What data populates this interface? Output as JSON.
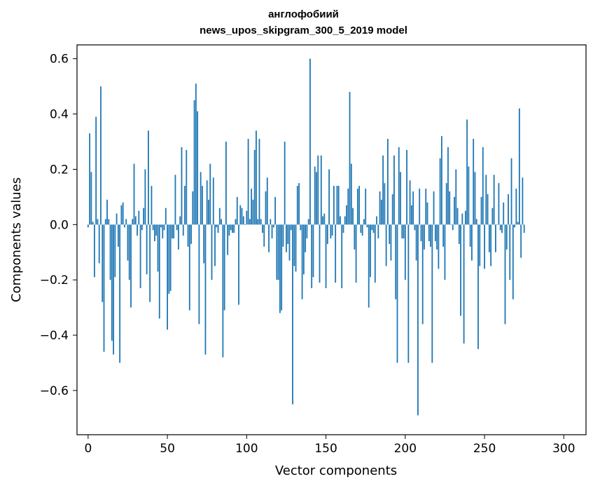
{
  "chart_data": {
    "type": "bar",
    "title_line1": "англофобиий",
    "title_line2": "news_upos_skipgram_300_5_2019 model",
    "xlabel": "Vector components",
    "ylabel": "Components values",
    "xlim": [
      -7,
      314
    ],
    "ylim": [
      -0.76,
      0.65
    ],
    "xticks": [
      0,
      50,
      100,
      150,
      200,
      250,
      300
    ],
    "xtick_labels": [
      "0",
      "50",
      "100",
      "150",
      "200",
      "250",
      "300"
    ],
    "yticks": [
      -0.6,
      -0.4,
      -0.2,
      0.0,
      0.2,
      0.4,
      0.6
    ],
    "ytick_labels": [
      "−0.6",
      "−0.4",
      "−0.2",
      "0.0",
      "0.2",
      "0.4",
      "0.6"
    ],
    "grid": false,
    "bar_color": "#1f77b4",
    "values": [
      -0.01,
      0.33,
      0.19,
      0.01,
      -0.19,
      0.39,
      0.02,
      -0.14,
      0.5,
      -0.28,
      -0.46,
      0.02,
      0.09,
      0.02,
      -0.2,
      -0.42,
      -0.47,
      -0.19,
      0.04,
      -0.08,
      -0.5,
      0.07,
      0.08,
      -0.01,
      0.02,
      -0.13,
      -0.2,
      -0.3,
      0.02,
      0.22,
      0.03,
      -0.04,
      0.05,
      -0.23,
      -0.02,
      0.06,
      0.2,
      -0.18,
      0.34,
      -0.28,
      0.14,
      -0.02,
      -0.06,
      -0.04,
      -0.17,
      -0.34,
      -0.01,
      -0.05,
      -0.02,
      0.06,
      -0.38,
      -0.25,
      -0.24,
      -0.05,
      -0.05,
      0.18,
      -0.02,
      -0.09,
      0.03,
      0.28,
      -0.04,
      0.14,
      0.27,
      -0.08,
      -0.31,
      -0.07,
      0.12,
      0.45,
      0.51,
      0.41,
      -0.36,
      0.19,
      0.14,
      -0.14,
      -0.47,
      0.16,
      0.09,
      0.22,
      -0.2,
      0.17,
      -0.15,
      -0.01,
      -0.03,
      0.06,
      0.02,
      -0.48,
      -0.31,
      0.3,
      -0.11,
      -0.04,
      -0.02,
      -0.03,
      -0.03,
      0.02,
      0.1,
      -0.29,
      0.07,
      0.06,
      0.03,
      0.0,
      0.05,
      0.31,
      0.02,
      0.13,
      0.09,
      0.27,
      0.34,
      0.02,
      0.31,
      0.02,
      -0.03,
      -0.08,
      0.12,
      0.17,
      -0.1,
      0.02,
      -0.05,
      -0.01,
      0.1,
      -0.2,
      -0.2,
      -0.32,
      -0.31,
      -0.08,
      0.3,
      -0.1,
      -0.07,
      -0.13,
      -0.02,
      -0.65,
      -0.15,
      -0.17,
      0.14,
      0.15,
      -0.02,
      -0.27,
      -0.18,
      -0.1,
      -0.05,
      0.02,
      0.6,
      -0.23,
      -0.19,
      0.21,
      0.19,
      0.25,
      -0.21,
      0.25,
      0.03,
      0.04,
      -0.23,
      -0.07,
      0.2,
      -0.05,
      -0.04,
      0.14,
      -0.21,
      0.14,
      0.14,
      0.03,
      -0.23,
      -0.03,
      0.03,
      0.07,
      0.13,
      0.48,
      0.22,
      0.06,
      -0.09,
      -0.21,
      0.13,
      0.14,
      -0.03,
      -0.04,
      0.02,
      0.13,
      -0.01,
      -0.3,
      -0.19,
      -0.02,
      -0.03,
      -0.21,
      0.03,
      -0.05,
      0.12,
      0.09,
      0.25,
      0.15,
      -0.15,
      0.31,
      -0.07,
      -0.13,
      0.11,
      0.25,
      -0.27,
      -0.5,
      0.28,
      0.19,
      -0.05,
      -0.05,
      -0.2,
      0.27,
      -0.5,
      0.16,
      0.07,
      0.12,
      -0.02,
      -0.13,
      -0.69,
      0.13,
      -0.06,
      -0.36,
      -0.09,
      0.13,
      0.08,
      -0.06,
      -0.08,
      -0.5,
      0.12,
      -0.06,
      -0.09,
      -0.16,
      0.24,
      0.32,
      -0.08,
      -0.2,
      0.15,
      0.28,
      0.12,
      0.0,
      -0.02,
      0.1,
      0.2,
      0.06,
      -0.07,
      -0.33,
      0.04,
      -0.43,
      0.05,
      0.38,
      0.21,
      -0.08,
      -0.13,
      0.31,
      0.19,
      0.02,
      -0.45,
      -0.15,
      0.1,
      0.28,
      -0.16,
      0.18,
      0.11,
      -0.1,
      -0.15,
      0.06,
      0.18,
      -0.1,
      0.0,
      0.15,
      -0.02,
      -0.03,
      0.08,
      -0.36,
      -0.09,
      0.11,
      -0.2,
      0.24,
      -0.27,
      -0.01,
      0.13,
      0.01,
      0.42,
      -0.12,
      0.17,
      -0.03
    ]
  }
}
